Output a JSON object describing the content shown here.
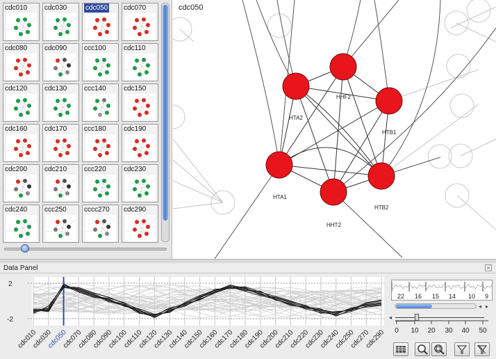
{
  "thumbnails": [
    {
      "label": "cdc010",
      "scheme": "green"
    },
    {
      "label": "cdc030",
      "scheme": "green"
    },
    {
      "label": "cdc050",
      "scheme": "red",
      "selected": true
    },
    {
      "label": "cdc070",
      "scheme": "red"
    },
    {
      "label": "cdc080",
      "scheme": "red"
    },
    {
      "label": "cdc090",
      "scheme": "dark"
    },
    {
      "label": "ccc100",
      "scheme": "green"
    },
    {
      "label": "cdc110",
      "scheme": "green"
    },
    {
      "label": "cdc120",
      "scheme": "green"
    },
    {
      "label": "cdc130",
      "scheme": "green"
    },
    {
      "label": "ccc140",
      "scheme": "mixed"
    },
    {
      "label": "cdc150",
      "scheme": "red"
    },
    {
      "label": "cdc160",
      "scheme": "red"
    },
    {
      "label": "cdc170",
      "scheme": "red"
    },
    {
      "label": "ccc180",
      "scheme": "red"
    },
    {
      "label": "cdc190",
      "scheme": "red"
    },
    {
      "label": "cdc200",
      "scheme": "dark"
    },
    {
      "label": "cdc210",
      "scheme": "dark"
    },
    {
      "label": "ccc220",
      "scheme": "green"
    },
    {
      "label": "cdc230",
      "scheme": "green"
    },
    {
      "label": "cdc240",
      "scheme": "green"
    },
    {
      "label": "ccc250",
      "scheme": "dark"
    },
    {
      "label": "cccc270",
      "scheme": "dark"
    },
    {
      "label": "cdc290",
      "scheme": "red"
    }
  ],
  "network": {
    "title": "cdc050",
    "node_color": "#e8161c",
    "nodes": [
      {
        "id": "HTA2",
        "label": "HTA2"
      },
      {
        "id": "HHF2",
        "label": "HHF2"
      },
      {
        "id": "HTB1",
        "label": "HTB1"
      },
      {
        "id": "HTA1",
        "label": "HTA1"
      },
      {
        "id": "HHT2",
        "label": "HHT2"
      },
      {
        "id": "HTB2",
        "label": "HTB2"
      }
    ]
  },
  "data_panel": {
    "title": "Data Panel",
    "close_icon": "close-icon",
    "mini_labels": [
      "22",
      "16",
      "15",
      "14",
      "10",
      "9"
    ],
    "distance_scale_labels": [
      "0",
      "10",
      "20",
      "30",
      "40",
      "50"
    ],
    "distance_threshold": 10
  },
  "chart_data": {
    "type": "line",
    "title": "",
    "xlabel": "",
    "ylabel": "",
    "ylim": [
      -2,
      2
    ],
    "y_ticks": [
      "2",
      "-2"
    ],
    "selected_category": "cdc050",
    "categories": [
      "cdc010",
      "cdc030",
      "cdc050",
      "cdc070",
      "cdc080",
      "cdc090",
      "cdc100",
      "cdc110",
      "cdc120",
      "cdc130",
      "cdc140",
      "cdc150",
      "cdc160",
      "cdc170",
      "cdc180",
      "cdc190",
      "cdc200",
      "cdc210",
      "cdc220",
      "cdc230",
      "cdc240",
      "cdc250",
      "cdc270",
      "cdc290"
    ],
    "series": [
      {
        "values": [
          -1.2,
          -0.8,
          1.8,
          1.2,
          0.6,
          0.1,
          -0.4,
          -1.1,
          -1.6,
          -0.9,
          -0.3,
          0.4,
          1.0,
          1.7,
          1.3,
          0.8,
          0.3,
          -0.2,
          -0.7,
          -1.1,
          -1.4,
          -0.9,
          -0.4,
          -0.2
        ]
      },
      {
        "values": [
          -1.0,
          -1.2,
          1.6,
          1.5,
          0.9,
          0.4,
          -0.3,
          -1.3,
          -1.8,
          -1.1,
          -0.5,
          0.2,
          0.9,
          1.5,
          1.6,
          1.0,
          0.5,
          0.0,
          -0.6,
          -1.2,
          -1.6,
          -1.2,
          -0.6,
          -0.4
        ]
      },
      {
        "values": [
          -1.4,
          -0.6,
          1.7,
          1.0,
          0.4,
          0.2,
          -0.6,
          -0.9,
          -1.5,
          -1.3,
          -0.2,
          0.6,
          1.2,
          1.6,
          1.1,
          0.6,
          0.2,
          -0.4,
          -0.8,
          -1.0,
          -1.3,
          -1.0,
          -0.2,
          0.1
        ]
      },
      {
        "values": [
          -0.9,
          -1.0,
          1.5,
          1.3,
          0.7,
          -0.1,
          -0.5,
          -1.2,
          -1.7,
          -0.8,
          -0.4,
          0.5,
          1.1,
          1.8,
          1.4,
          0.9,
          0.1,
          -0.3,
          -0.9,
          -1.3,
          -1.5,
          -0.8,
          -0.5,
          -0.3
        ]
      },
      {
        "values": [
          -1.3,
          -0.9,
          1.9,
          1.1,
          0.5,
          0.3,
          -0.2,
          -1.0,
          -1.9,
          -1.0,
          -0.6,
          0.3,
          1.3,
          1.4,
          1.5,
          0.7,
          0.4,
          -0.1,
          -0.5,
          -1.4,
          -1.2,
          -1.1,
          -0.3,
          0.0
        ]
      },
      {
        "values": [
          -1.1,
          -1.1,
          1.6,
          1.4,
          0.8,
          0.0,
          -0.4,
          -1.4,
          -1.6,
          -1.2,
          -0.3,
          0.1,
          1.0,
          1.6,
          1.2,
          1.1,
          0.2,
          -0.5,
          -0.7,
          -0.9,
          -1.7,
          -1.0,
          -0.7,
          -0.5
        ]
      }
    ]
  }
}
